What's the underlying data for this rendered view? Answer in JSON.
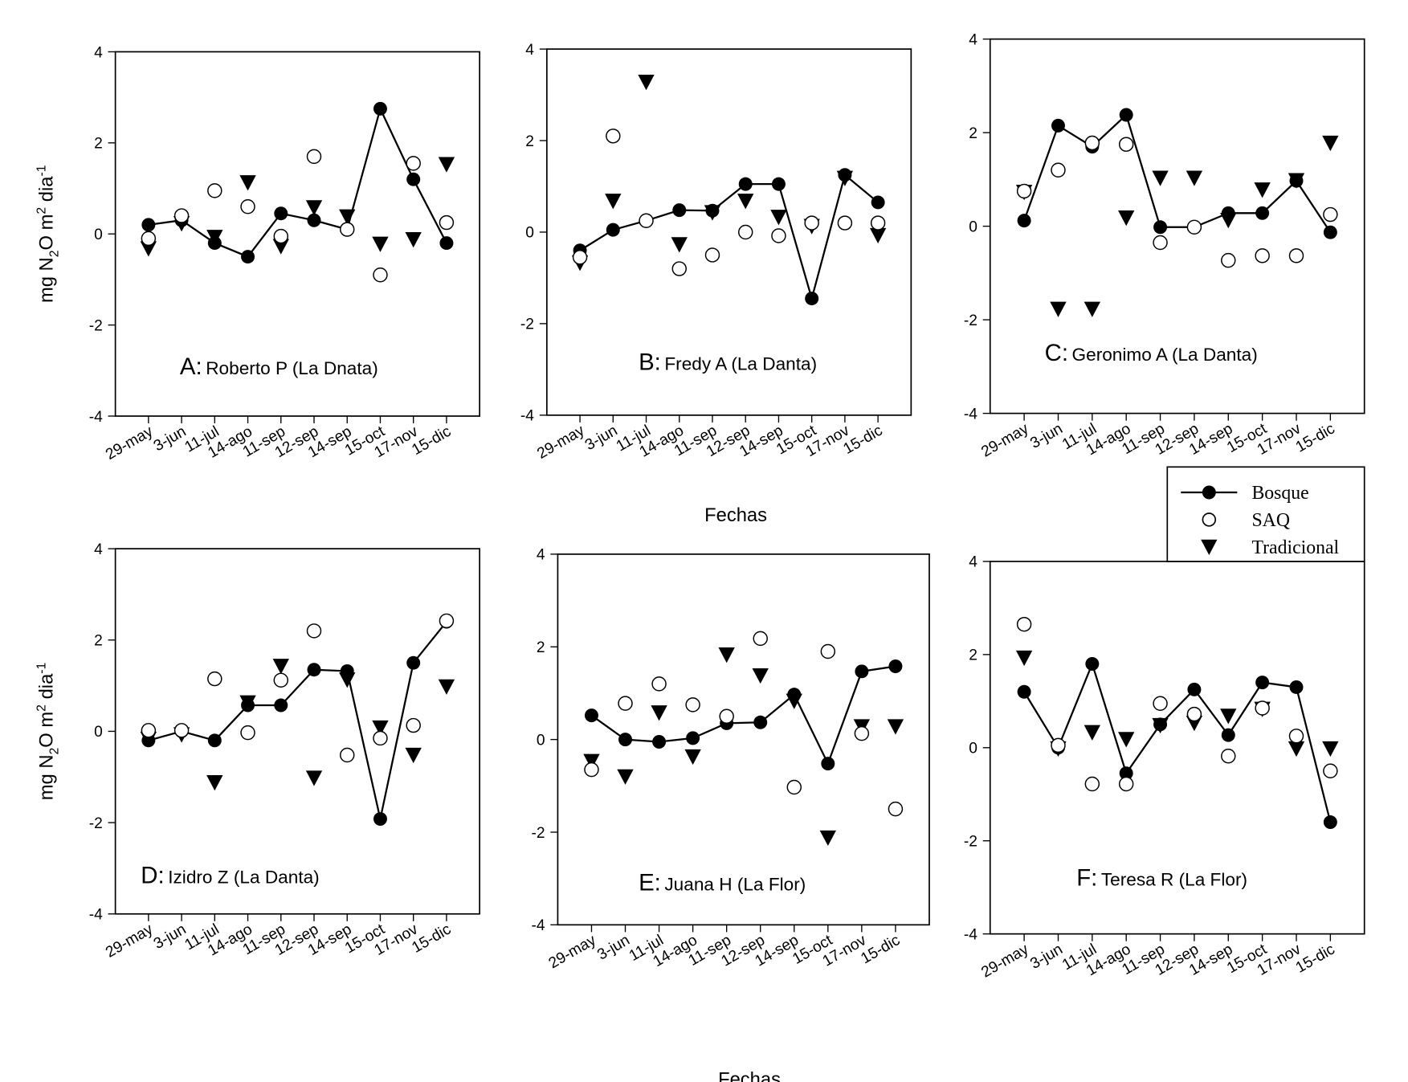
{
  "chart_data": {
    "type": "scatter",
    "categories": [
      "29-may",
      "3-jun",
      "11-jul",
      "14-ago",
      "11-sep",
      "12-sep",
      "14-sep",
      "15-oct",
      "17-nov",
      "15-dic"
    ],
    "ylabel_parts": {
      "pre": "mg N",
      "sub": "2",
      "mid": "O m",
      "sup1": "2",
      "post": " dia",
      "sup2": "-1"
    },
    "xlabel": "Fechas",
    "ylim": [
      -4,
      4
    ],
    "yticks": [
      "4",
      "2",
      "0",
      "-2",
      "-4"
    ],
    "grid": false,
    "legend": {
      "placement": "between-top-right-panels",
      "entries": [
        {
          "name": "Bosque",
          "marker": "filled-circle-line"
        },
        {
          "name": "SAQ",
          "marker": "open-circle"
        },
        {
          "name": "Tradicional",
          "marker": "filled-down-triangle"
        }
      ]
    },
    "colors": {
      "marks": "#000000",
      "open_fill": "#ffffff"
    },
    "panels": [
      {
        "letter": "A:",
        "title": "Roberto P (La Dnata)",
        "series": [
          {
            "name": "Bosque",
            "values": [
              0.2,
              0.3,
              -0.2,
              -0.5,
              0.45,
              0.3,
              0.1,
              2.75,
              1.2,
              -0.2
            ]
          },
          {
            "name": "SAQ",
            "values": [
              -0.1,
              0.4,
              0.95,
              0.6,
              -0.05,
              1.7,
              0.1,
              -0.9,
              1.55,
              0.25
            ]
          },
          {
            "name": "Tradicional",
            "values": [
              -0.3,
              0.25,
              -0.05,
              1.15,
              -0.25,
              0.6,
              0.4,
              -0.2,
              -0.1,
              1.55
            ]
          }
        ]
      },
      {
        "letter": "B:",
        "title": "Fredy A (La Danta)",
        "series": [
          {
            "name": "Bosque",
            "values": [
              -0.4,
              0.05,
              0.25,
              0.48,
              0.47,
              1.05,
              1.05,
              -1.45,
              1.25,
              0.65
            ]
          },
          {
            "name": "SAQ",
            "values": [
              -0.55,
              2.1,
              0.25,
              -0.8,
              -0.5,
              0.0,
              -0.08,
              0.2,
              0.2,
              0.2
            ]
          },
          {
            "name": "Tradicional",
            "values": [
              -0.65,
              0.7,
              3.3,
              -0.25,
              0.45,
              0.7,
              0.35,
              0.15,
              1.2,
              -0.05
            ]
          }
        ]
      },
      {
        "letter": "C:",
        "title": "Geronimo A (La Danta)",
        "series": [
          {
            "name": "Bosque",
            "values": [
              0.12,
              2.15,
              1.7,
              2.38,
              -0.02,
              -0.02,
              0.28,
              0.28,
              0.97,
              -0.13
            ]
          },
          {
            "name": "SAQ",
            "values": [
              0.75,
              1.2,
              1.78,
              1.75,
              -0.35,
              -0.02,
              -0.73,
              -0.63,
              -0.63,
              0.25
            ]
          },
          {
            "name": "Tradicional",
            "values": [
              0.75,
              -1.75,
              -1.75,
              0.2,
              1.05,
              1.05,
              0.15,
              0.8,
              1.0,
              1.8
            ]
          }
        ]
      },
      {
        "letter": "D:",
        "title": "Izidro Z (La Danta)",
        "series": [
          {
            "name": "Bosque",
            "values": [
              -0.2,
              0.0,
              -0.2,
              0.57,
              0.57,
              1.35,
              1.32,
              -1.92,
              1.5,
              2.4
            ]
          },
          {
            "name": "SAQ",
            "values": [
              0.02,
              0.02,
              1.15,
              -0.03,
              1.12,
              2.2,
              -0.52,
              -0.15,
              0.13,
              2.42
            ]
          },
          {
            "name": "Tradicional",
            "values": [
              -0.15,
              -0.05,
              -1.1,
              0.65,
              1.45,
              -1.0,
              1.15,
              0.1,
              -0.5,
              1.0
            ]
          }
        ]
      },
      {
        "letter": "E:",
        "title": "Juana H (La Flor)",
        "series": [
          {
            "name": "Bosque",
            "values": [
              0.52,
              0.0,
              -0.05,
              0.03,
              0.35,
              0.37,
              0.97,
              -0.52,
              1.47,
              1.58
            ]
          },
          {
            "name": "SAQ",
            "values": [
              -0.65,
              0.78,
              1.2,
              0.75,
              0.5,
              2.18,
              -1.03,
              1.9,
              0.13,
              -1.5
            ]
          },
          {
            "name": "Tradicional",
            "values": [
              -0.45,
              -0.78,
              0.6,
              -0.35,
              1.85,
              1.4,
              0.85,
              -2.1,
              0.3,
              0.3
            ]
          }
        ]
      },
      {
        "letter": "F:",
        "title": "Teresa R (La Flor)",
        "series": [
          {
            "name": "Bosque",
            "values": [
              1.2,
              0.0,
              1.8,
              -0.55,
              0.5,
              1.25,
              0.27,
              1.4,
              1.3,
              -1.6
            ]
          },
          {
            "name": "SAQ",
            "values": [
              2.65,
              0.05,
              -0.78,
              -0.78,
              0.95,
              0.72,
              -0.18,
              0.85,
              0.25,
              -0.5
            ]
          },
          {
            "name": "Tradicional",
            "values": [
              1.95,
              0.0,
              0.35,
              0.2,
              0.5,
              0.55,
              0.7,
              0.85,
              0.0,
              0.0
            ]
          }
        ]
      }
    ]
  }
}
